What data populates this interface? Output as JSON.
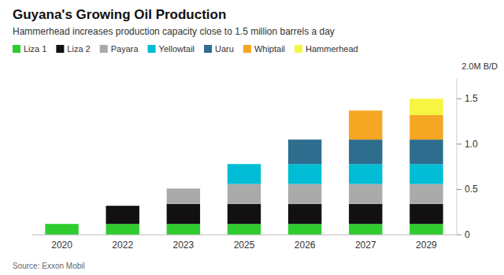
{
  "chart_data": {
    "type": "bar",
    "stacked": true,
    "title": "Guyana's Growing Oil Production",
    "subtitle": "Hammerhead increases production capacity close to 1.5 million barrels a day",
    "y_label": "2.0M B/D",
    "source": "Source: Exxon Mobil",
    "categories": [
      "2020",
      "2022",
      "2023",
      "2025",
      "2026",
      "2027",
      "2029"
    ],
    "series": [
      {
        "name": "Liza 1",
        "color": "#2ecc2e",
        "values": [
          0.12,
          0.12,
          0.12,
          0.12,
          0.12,
          0.12,
          0.12
        ]
      },
      {
        "name": "Liza 2",
        "color": "#111111",
        "values": [
          0.0,
          0.2,
          0.22,
          0.22,
          0.22,
          0.22,
          0.22
        ]
      },
      {
        "name": "Payara",
        "color": "#aaaaaa",
        "values": [
          0.0,
          0.0,
          0.17,
          0.22,
          0.22,
          0.22,
          0.22
        ]
      },
      {
        "name": "Yellowtail",
        "color": "#00bcd4",
        "values": [
          0.0,
          0.0,
          0.0,
          0.22,
          0.22,
          0.22,
          0.22
        ]
      },
      {
        "name": "Uaru",
        "color": "#2e6d8e",
        "values": [
          0.0,
          0.0,
          0.0,
          0.0,
          0.27,
          0.27,
          0.27
        ]
      },
      {
        "name": "Whiptail",
        "color": "#f5a623",
        "values": [
          0.0,
          0.0,
          0.0,
          0.0,
          0.0,
          0.32,
          0.27
        ]
      },
      {
        "name": "Hammerhead",
        "color": "#f5f542",
        "values": [
          0.0,
          0.0,
          0.0,
          0.0,
          0.0,
          0.0,
          0.18
        ]
      }
    ],
    "ylim": [
      0,
      1.72
    ],
    "yticks": [
      0,
      0.5,
      {
        "value": 1.0,
        "label": "1.0"
      },
      1.5
    ],
    "grid": false,
    "legend": "upper left"
  }
}
